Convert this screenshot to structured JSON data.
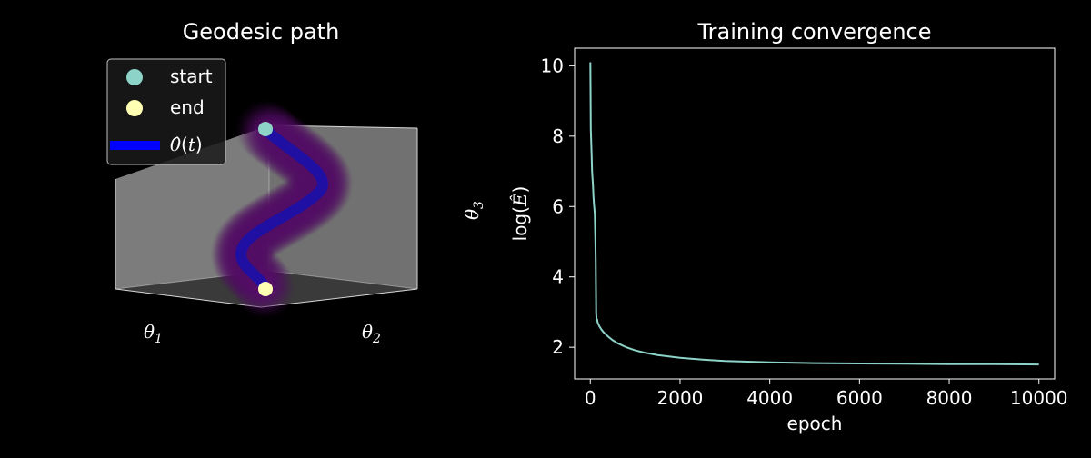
{
  "colors": {
    "background": "#000000",
    "curve": "#8dd3c7",
    "start_marker": "#8dd3c7",
    "end_marker": "#ffffb3",
    "path_line": "#0000ff",
    "tube": "#4b0a5c",
    "box_face": "#808080"
  },
  "chart_data": [
    {
      "type": "scatter3d",
      "title": "Geodesic path",
      "xlabel": "θ1",
      "ylabel": "θ2",
      "zlabel": "θ3",
      "legend": {
        "placement": "top-left",
        "entries": [
          {
            "label": "start",
            "marker": "circle",
            "color": "#8dd3c7"
          },
          {
            "label": "end",
            "marker": "circle",
            "color": "#ffffb3"
          },
          {
            "label": "θ̂(t)",
            "marker": "line",
            "color": "#0000ff"
          }
        ]
      },
      "grid": false
    },
    {
      "type": "line",
      "title": "Training convergence",
      "xlabel": "epoch",
      "ylabel": "log(Ê)",
      "xlim": [
        -350,
        10350
      ],
      "ylim": [
        1.1,
        10.5
      ],
      "xticks": [
        0,
        2000,
        4000,
        6000,
        8000,
        10000
      ],
      "yticks": [
        2,
        4,
        6,
        8,
        10
      ],
      "grid": false,
      "series": [
        {
          "color": "#8dd3c7",
          "x": [
            0,
            5,
            10,
            20,
            30,
            40,
            50,
            60,
            70,
            80,
            90,
            100,
            110,
            120,
            130,
            140,
            150,
            160,
            170,
            200,
            250,
            300,
            400,
            500,
            600,
            700,
            800,
            1000,
            1200,
            1500,
            2000,
            2500,
            3000,
            4000,
            5000,
            6000,
            7000,
            8000,
            9000,
            10000
          ],
          "y": [
            10.1,
            9.4,
            8.2,
            7.8,
            7.4,
            7.0,
            6.8,
            6.6,
            6.3,
            6.1,
            5.95,
            5.8,
            5.2,
            4.5,
            3.0,
            2.75,
            2.8,
            2.72,
            2.68,
            2.6,
            2.5,
            2.42,
            2.3,
            2.2,
            2.12,
            2.06,
            2.0,
            1.91,
            1.85,
            1.78,
            1.7,
            1.65,
            1.61,
            1.57,
            1.55,
            1.54,
            1.53,
            1.52,
            1.52,
            1.51
          ]
        }
      ]
    }
  ]
}
